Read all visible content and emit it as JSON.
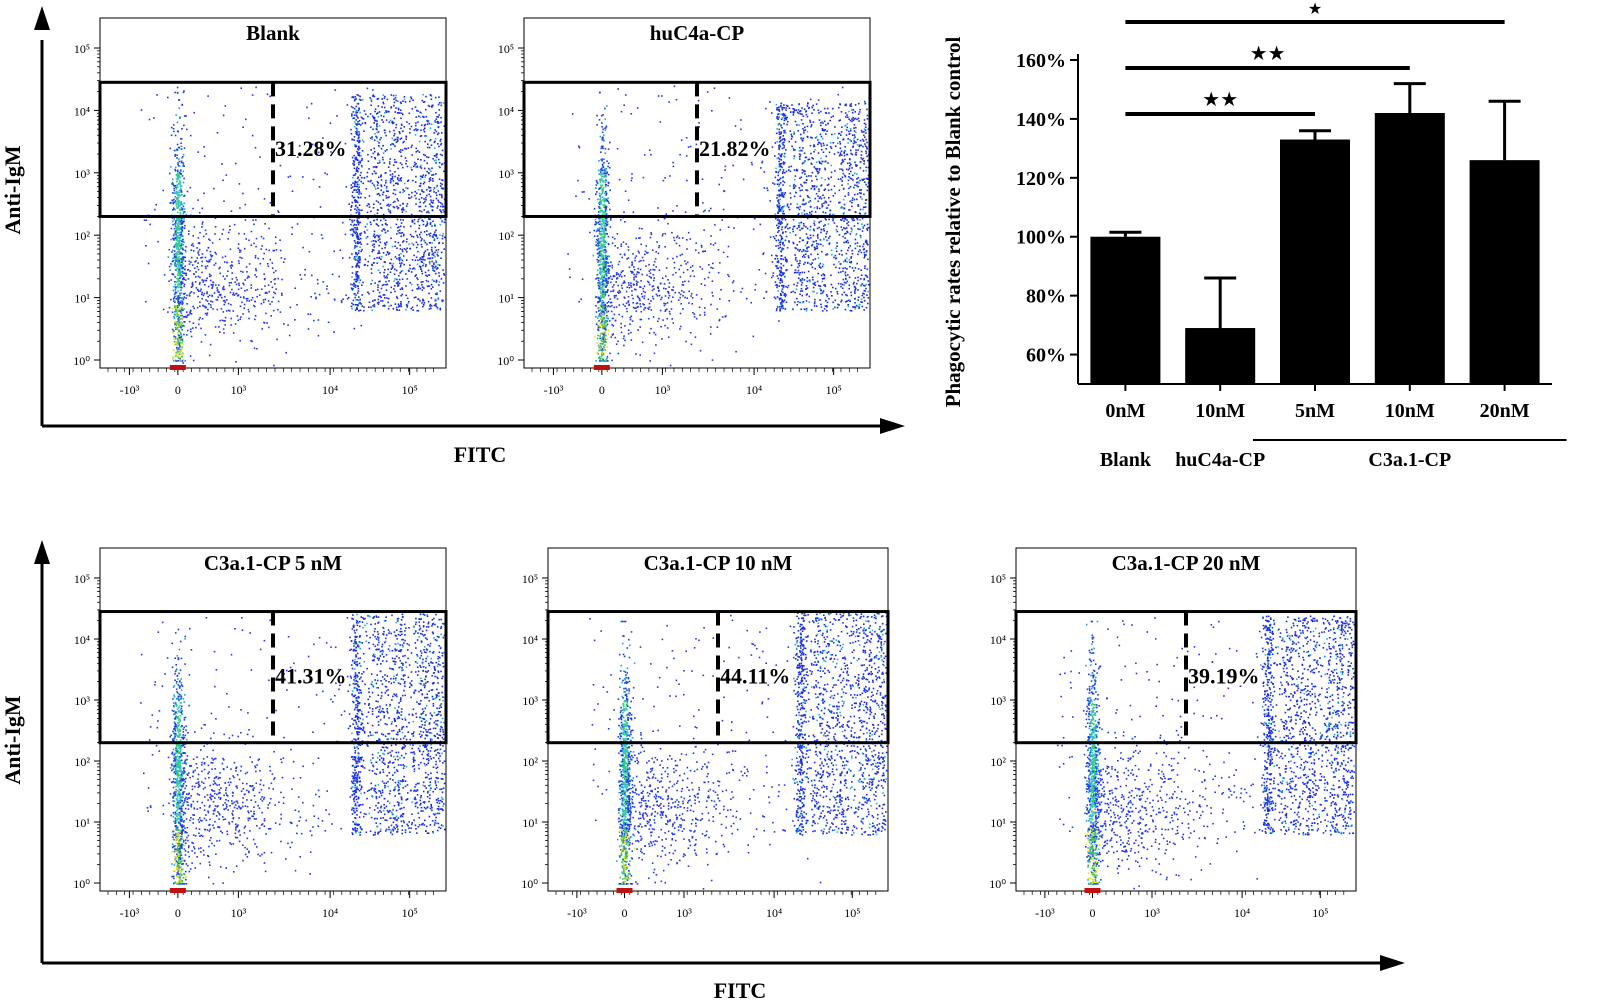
{
  "chart_data": [
    {
      "type": "scatter",
      "subtype": "flow-cytometry",
      "title": "Blank",
      "xlabel": "FITC",
      "ylabel": "Anti-IgM",
      "x_ticks": [
        "-10³",
        "0",
        "10³",
        "10⁴",
        "10⁵"
      ],
      "y_ticks": [
        "10⁰",
        "10¹",
        "10²",
        "10³",
        "10⁴",
        "10⁵"
      ],
      "gate_percent": "31.28%"
    },
    {
      "type": "scatter",
      "subtype": "flow-cytometry",
      "title": "huC4a-CP",
      "xlabel": "FITC",
      "ylabel": "Anti-IgM",
      "x_ticks": [
        "-10³",
        "0",
        "10³",
        "10⁴",
        "10⁵"
      ],
      "y_ticks": [
        "10⁰",
        "10¹",
        "10²",
        "10³",
        "10⁴",
        "10⁵"
      ],
      "gate_percent": "21.82%"
    },
    {
      "type": "scatter",
      "subtype": "flow-cytometry",
      "title": "C3a.1-CP 5 nM",
      "xlabel": "FITC",
      "ylabel": "Anti-IgM",
      "x_ticks": [
        "-10³",
        "0",
        "10³",
        "10⁴",
        "10⁵"
      ],
      "y_ticks": [
        "10⁰",
        "10¹",
        "10²",
        "10³",
        "10⁴",
        "10⁵"
      ],
      "gate_percent": "41.31%"
    },
    {
      "type": "scatter",
      "subtype": "flow-cytometry",
      "title": "C3a.1-CP 10 nM",
      "xlabel": "FITC",
      "ylabel": "Anti-IgM",
      "x_ticks": [
        "-10³",
        "0",
        "10³",
        "10⁴",
        "10⁵"
      ],
      "y_ticks": [
        "10⁰",
        "10¹",
        "10²",
        "10³",
        "10⁴",
        "10⁵"
      ],
      "gate_percent": "44.11%"
    },
    {
      "type": "scatter",
      "subtype": "flow-cytometry",
      "title": "C3a.1-CP 20 nM",
      "xlabel": "FITC",
      "ylabel": "Anti-IgM",
      "x_ticks": [
        "-10³",
        "0",
        "10³",
        "10⁴",
        "10⁵"
      ],
      "y_ticks": [
        "10⁰",
        "10¹",
        "10²",
        "10³",
        "10⁴",
        "10⁵"
      ],
      "gate_percent": "39.19%"
    },
    {
      "type": "bar",
      "ylabel": "Phagocytic rates relative to Blank control",
      "categories": [
        "0nM",
        "10nM",
        "5nM",
        "10nM",
        "20nM"
      ],
      "group_labels": [
        "Blank",
        "huC4a-CP",
        "C3a.1-CP"
      ],
      "values": [
        100,
        69,
        133,
        142,
        126
      ],
      "errors": [
        1.5,
        17,
        3,
        10,
        20
      ],
      "ylim": [
        50,
        160
      ],
      "y_ticks": [
        "60%",
        "80%",
        "100%",
        "120%",
        "140%",
        "160%"
      ],
      "y_tick_values": [
        60,
        80,
        100,
        120,
        140,
        160
      ],
      "significance": [
        {
          "from": 0,
          "to": 2,
          "label": "★★"
        },
        {
          "from": 0,
          "to": 3,
          "label": "★★"
        },
        {
          "from": 0,
          "to": 4,
          "label": "★"
        }
      ]
    }
  ],
  "labels": {
    "anti_igm": "Anti-IgM",
    "fitc": "FITC"
  }
}
